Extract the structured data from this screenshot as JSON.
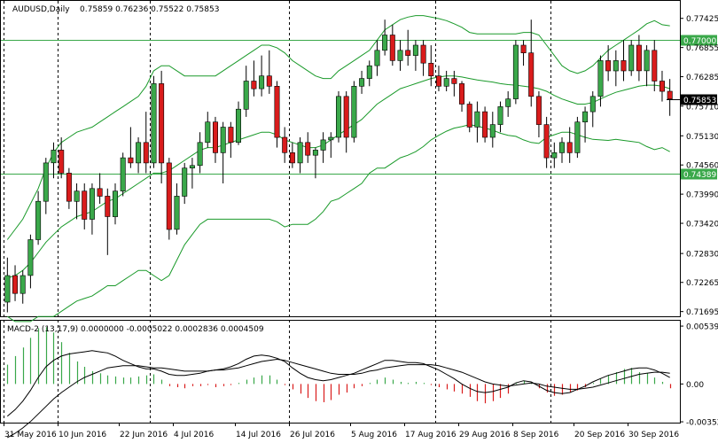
{
  "chart_data": {
    "type": "candlestick",
    "title": "AUDUSD,Daily",
    "ohlc_text": "0.75859 0.76236 0.75522 0.75853",
    "price_axis": {
      "range": [
        0.7162,
        0.7768
      ],
      "ticks": [
        "0.77425",
        "0.76855",
        "0.76285",
        "0.75710",
        "0.75130",
        "0.74560",
        "0.73990",
        "0.73420",
        "0.72830",
        "0.72265",
        "0.71695"
      ]
    },
    "horizontal_lines": [
      {
        "value": 0.77,
        "label": "0.77000",
        "color": "#3aa84a"
      },
      {
        "value": 0.74389,
        "label": "0.74389",
        "color": "#3aa84a"
      }
    ],
    "current_price": {
      "value": 0.75853,
      "label": "0.75853"
    },
    "x_labels": [
      "31 May 2016",
      "10 Jun 2016",
      "22 Jun 2016",
      "4 Jul 2016",
      "14 Jul 2016",
      "26 Jul 2016",
      "5 Aug 2016",
      "17 Aug 2016",
      "29 Aug 2016",
      "8 Sep 2016",
      "20 Sep 2016",
      "30 Sep 2016"
    ],
    "candles": [
      [
        0.7188,
        0.7275,
        0.7168,
        0.724
      ],
      [
        0.724,
        0.726,
        0.719,
        0.7205
      ],
      [
        0.7205,
        0.725,
        0.7185,
        0.724
      ],
      [
        0.724,
        0.732,
        0.7215,
        0.731
      ],
      [
        0.731,
        0.7405,
        0.73,
        0.7385
      ],
      [
        0.7385,
        0.747,
        0.736,
        0.746
      ],
      [
        0.746,
        0.75,
        0.743,
        0.7485
      ],
      [
        0.7485,
        0.751,
        0.743,
        0.744
      ],
      [
        0.744,
        0.745,
        0.737,
        0.7385
      ],
      [
        0.7385,
        0.742,
        0.735,
        0.7405
      ],
      [
        0.7405,
        0.742,
        0.733,
        0.735
      ],
      [
        0.735,
        0.742,
        0.732,
        0.741
      ],
      [
        0.741,
        0.744,
        0.738,
        0.7395
      ],
      [
        0.7395,
        0.741,
        0.728,
        0.7355
      ],
      [
        0.7355,
        0.742,
        0.734,
        0.7405
      ],
      [
        0.7405,
        0.748,
        0.7395,
        0.747
      ],
      [
        0.747,
        0.753,
        0.745,
        0.746
      ],
      [
        0.746,
        0.751,
        0.744,
        0.75
      ],
      [
        0.75,
        0.756,
        0.744,
        0.746
      ],
      [
        0.746,
        0.763,
        0.745,
        0.7615
      ],
      [
        0.7615,
        0.764,
        0.742,
        0.746
      ],
      [
        0.746,
        0.747,
        0.731,
        0.733
      ],
      [
        0.733,
        0.742,
        0.732,
        0.7395
      ],
      [
        0.7395,
        0.746,
        0.738,
        0.745
      ],
      [
        0.745,
        0.747,
        0.741,
        0.7455
      ],
      [
        0.7455,
        0.752,
        0.744,
        0.75
      ],
      [
        0.75,
        0.756,
        0.749,
        0.754
      ],
      [
        0.754,
        0.755,
        0.746,
        0.748
      ],
      [
        0.748,
        0.754,
        0.742,
        0.753
      ],
      [
        0.753,
        0.754,
        0.747,
        0.75
      ],
      [
        0.75,
        0.758,
        0.7495,
        0.7565
      ],
      [
        0.7565,
        0.765,
        0.755,
        0.762
      ],
      [
        0.762,
        0.766,
        0.759,
        0.7605
      ],
      [
        0.7605,
        0.767,
        0.759,
        0.763
      ],
      [
        0.763,
        0.768,
        0.7595,
        0.761
      ],
      [
        0.761,
        0.762,
        0.749,
        0.751
      ],
      [
        0.751,
        0.753,
        0.746,
        0.748
      ],
      [
        0.748,
        0.75,
        0.745,
        0.746
      ],
      [
        0.746,
        0.751,
        0.744,
        0.75
      ],
      [
        0.75,
        0.752,
        0.746,
        0.7475
      ],
      [
        0.7475,
        0.749,
        0.743,
        0.7485
      ],
      [
        0.7485,
        0.752,
        0.746,
        0.7505
      ],
      [
        0.7505,
        0.752,
        0.747,
        0.751
      ],
      [
        0.751,
        0.76,
        0.75,
        0.759
      ],
      [
        0.759,
        0.76,
        0.748,
        0.751
      ],
      [
        0.751,
        0.762,
        0.75,
        0.761
      ],
      [
        0.761,
        0.764,
        0.7595,
        0.7625
      ],
      [
        0.7625,
        0.766,
        0.761,
        0.765
      ],
      [
        0.765,
        0.77,
        0.763,
        0.768
      ],
      [
        0.768,
        0.774,
        0.767,
        0.771
      ],
      [
        0.771,
        0.773,
        0.765,
        0.766
      ],
      [
        0.766,
        0.77,
        0.764,
        0.768
      ],
      [
        0.768,
        0.772,
        0.765,
        0.767
      ],
      [
        0.767,
        0.77,
        0.764,
        0.769
      ],
      [
        0.769,
        0.77,
        0.763,
        0.7655
      ],
      [
        0.7655,
        0.769,
        0.761,
        0.763
      ],
      [
        0.763,
        0.765,
        0.76,
        0.761
      ],
      [
        0.761,
        0.764,
        0.76,
        0.7625
      ],
      [
        0.7625,
        0.764,
        0.759,
        0.7615
      ],
      [
        0.7615,
        0.762,
        0.756,
        0.7575
      ],
      [
        0.7575,
        0.758,
        0.752,
        0.753
      ],
      [
        0.753,
        0.758,
        0.75,
        0.756
      ],
      [
        0.756,
        0.757,
        0.75,
        0.751
      ],
      [
        0.751,
        0.756,
        0.749,
        0.7535
      ],
      [
        0.7535,
        0.758,
        0.752,
        0.757
      ],
      [
        0.757,
        0.76,
        0.755,
        0.7585
      ],
      [
        0.7585,
        0.77,
        0.7575,
        0.769
      ],
      [
        0.769,
        0.77,
        0.765,
        0.7675
      ],
      [
        0.7675,
        0.774,
        0.757,
        0.759
      ],
      [
        0.759,
        0.76,
        0.751,
        0.7535
      ],
      [
        0.7535,
        0.755,
        0.745,
        0.747
      ],
      [
        0.747,
        0.75,
        0.745,
        0.748
      ],
      [
        0.748,
        0.751,
        0.746,
        0.75
      ],
      [
        0.75,
        0.753,
        0.746,
        0.748
      ],
      [
        0.748,
        0.755,
        0.747,
        0.754
      ],
      [
        0.754,
        0.757,
        0.75,
        0.756
      ],
      [
        0.756,
        0.76,
        0.753,
        0.759
      ],
      [
        0.759,
        0.767,
        0.757,
        0.766
      ],
      [
        0.766,
        0.769,
        0.762,
        0.764
      ],
      [
        0.764,
        0.768,
        0.761,
        0.766
      ],
      [
        0.766,
        0.77,
        0.762,
        0.764
      ],
      [
        0.764,
        0.77,
        0.763,
        0.769
      ],
      [
        0.769,
        0.771,
        0.762,
        0.764
      ],
      [
        0.764,
        0.769,
        0.761,
        0.768
      ],
      [
        0.768,
        0.77,
        0.76,
        0.762
      ],
      [
        0.762,
        0.764,
        0.758,
        0.76
      ],
      [
        0.76,
        0.7624,
        0.7552,
        0.7585
      ]
    ],
    "bollinger": {
      "upper": [
        0.731,
        0.733,
        0.735,
        0.738,
        0.741,
        0.745,
        0.748,
        0.75,
        0.751,
        0.752,
        0.7525,
        0.753,
        0.754,
        0.755,
        0.756,
        0.757,
        0.758,
        0.759,
        0.761,
        0.764,
        0.765,
        0.765,
        0.764,
        0.763,
        0.763,
        0.763,
        0.763,
        0.763,
        0.764,
        0.765,
        0.766,
        0.767,
        0.768,
        0.769,
        0.769,
        0.7685,
        0.7675,
        0.766,
        0.765,
        0.764,
        0.763,
        0.7625,
        0.7625,
        0.764,
        0.765,
        0.766,
        0.767,
        0.768,
        0.77,
        0.772,
        0.773,
        0.774,
        0.7745,
        0.7748,
        0.7748,
        0.7745,
        0.7742,
        0.7738,
        0.7732,
        0.7725,
        0.7715,
        0.7712,
        0.7712,
        0.7712,
        0.7712,
        0.7712,
        0.7712,
        0.7715,
        0.7715,
        0.771,
        0.769,
        0.767,
        0.765,
        0.764,
        0.7635,
        0.764,
        0.765,
        0.7665,
        0.768,
        0.769,
        0.77,
        0.771,
        0.772,
        0.7732,
        0.7738,
        0.773,
        0.7728
      ],
      "middle": [
        0.7235,
        0.724,
        0.725,
        0.7265,
        0.7285,
        0.7305,
        0.732,
        0.7335,
        0.7345,
        0.7355,
        0.736,
        0.7365,
        0.7375,
        0.7385,
        0.739,
        0.74,
        0.741,
        0.742,
        0.743,
        0.744,
        0.744,
        0.7445,
        0.7455,
        0.7465,
        0.7475,
        0.7485,
        0.749,
        0.749,
        0.7495,
        0.75,
        0.7505,
        0.751,
        0.7515,
        0.752,
        0.752,
        0.7515,
        0.7505,
        0.75,
        0.7495,
        0.749,
        0.749,
        0.7495,
        0.7505,
        0.7515,
        0.7525,
        0.7535,
        0.7545,
        0.756,
        0.7575,
        0.7585,
        0.7595,
        0.7605,
        0.761,
        0.7615,
        0.762,
        0.7625,
        0.7628,
        0.763,
        0.763,
        0.7628,
        0.7625,
        0.7622,
        0.762,
        0.7618,
        0.7615,
        0.7613,
        0.7612,
        0.761,
        0.7608,
        0.7605,
        0.76,
        0.7592,
        0.7585,
        0.758,
        0.7575,
        0.7575,
        0.7578,
        0.7585,
        0.7592,
        0.7598,
        0.7602,
        0.7606,
        0.761,
        0.7612,
        0.7612,
        0.761,
        0.7605
      ],
      "lower": [
        0.716,
        0.715,
        0.715,
        0.715,
        0.716,
        0.716,
        0.716,
        0.717,
        0.718,
        0.719,
        0.7195,
        0.72,
        0.721,
        0.722,
        0.722,
        0.723,
        0.724,
        0.725,
        0.725,
        0.724,
        0.723,
        0.724,
        0.727,
        0.73,
        0.732,
        0.734,
        0.735,
        0.735,
        0.735,
        0.735,
        0.735,
        0.735,
        0.735,
        0.735,
        0.735,
        0.7345,
        0.7335,
        0.734,
        0.734,
        0.734,
        0.735,
        0.7365,
        0.7385,
        0.739,
        0.74,
        0.741,
        0.742,
        0.744,
        0.745,
        0.745,
        0.746,
        0.747,
        0.7475,
        0.7482,
        0.7492,
        0.7505,
        0.7514,
        0.7522,
        0.7528,
        0.7531,
        0.7535,
        0.7532,
        0.7528,
        0.7524,
        0.7518,
        0.7514,
        0.7512,
        0.7505,
        0.75,
        0.7498,
        0.751,
        0.7515,
        0.752,
        0.752,
        0.7515,
        0.751,
        0.7506,
        0.7505,
        0.7504,
        0.7506,
        0.7504,
        0.7502,
        0.75,
        0.7492,
        0.7486,
        0.749,
        0.7482
      ]
    },
    "macd": {
      "label": "MACD-2 (13,17,9) 0.0000000 -0.0005022 0.0002836 0.0004509",
      "axis_ticks": [
        "0.005395",
        "0.00",
        "-0.003525"
      ],
      "range": [
        -0.00352,
        0.0054
      ],
      "histogram": [
        0.0018,
        0.0026,
        0.0034,
        0.0043,
        0.0052,
        0.0053,
        0.0048,
        0.0039,
        0.0029,
        0.0021,
        0.0016,
        0.0012,
        0.001,
        0.0008,
        0.0007,
        0.0006,
        0.0006,
        0.0007,
        0.0008,
        0.0009,
        0.0004,
        -0.0002,
        -0.0003,
        -0.0004,
        -0.0002,
        -0.0002,
        -0.0001,
        -0.0003,
        -0.0002,
        -0.0001,
        0.0001,
        0.0004,
        0.0006,
        0.0008,
        0.0008,
        0.0004,
        -0.0001,
        -0.0005,
        -0.0009,
        -0.0013,
        -0.0016,
        -0.0017,
        -0.0015,
        -0.001,
        -0.0008,
        -0.0004,
        -0.0002,
        0.0001,
        0.0004,
        0.0006,
        0.0004,
        0.0002,
        0.0001,
        0.0002,
        0.0001,
        -0.0001,
        -0.0003,
        -0.0005,
        -0.0007,
        -0.0009,
        -0.0012,
        -0.0016,
        -0.0018,
        -0.0016,
        -0.0013,
        -0.0009,
        0.0001,
        0.0003,
        0.0001,
        -0.0004,
        -0.0008,
        -0.0011,
        -0.001,
        -0.0008,
        -0.0006,
        -0.0003,
        0.0001,
        0.0005,
        0.0008,
        0.0011,
        0.0014,
        0.0015,
        0.0011,
        0.001,
        0.0006,
        0.0002,
        -0.0004
      ],
      "macd_line": [
        -0.003,
        -0.0024,
        -0.0016,
        -0.0006,
        0.0006,
        0.0016,
        0.0022,
        0.0026,
        0.0028,
        0.0029,
        0.003,
        0.0031,
        0.003,
        0.0029,
        0.0026,
        0.0022,
        0.0019,
        0.0016,
        0.0014,
        0.0014,
        0.0012,
        0.0009,
        0.0008,
        0.0008,
        0.0009,
        0.001,
        0.0012,
        0.0013,
        0.0014,
        0.0016,
        0.0019,
        0.0023,
        0.0026,
        0.0027,
        0.0026,
        0.0024,
        0.0021,
        0.0015,
        0.001,
        0.0006,
        0.0004,
        0.0003,
        0.0004,
        0.0006,
        0.0008,
        0.001,
        0.0013,
        0.0016,
        0.0019,
        0.0022,
        0.0022,
        0.0021,
        0.002,
        0.002,
        0.0019,
        0.0016,
        0.0013,
        0.0009,
        0.0005,
        0.0,
        -0.0004,
        -0.0007,
        -0.0008,
        -0.0007,
        -0.0005,
        -0.0003,
        0.0001,
        0.0003,
        0.0002,
        -0.0002,
        -0.0006,
        -0.0008,
        -0.0009,
        -0.0008,
        -0.0005,
        -0.0002,
        0.0002,
        0.0005,
        0.0008,
        0.001,
        0.0012,
        0.0014,
        0.0015,
        0.0015,
        0.0013,
        0.001,
        0.0006
      ],
      "signal_line": [
        -0.005,
        -0.0046,
        -0.0041,
        -0.0035,
        -0.0028,
        -0.0021,
        -0.0014,
        -0.0008,
        -0.0003,
        0.0002,
        0.0006,
        0.0009,
        0.0012,
        0.0015,
        0.0016,
        0.0017,
        0.0017,
        0.0017,
        0.0016,
        0.0015,
        0.0015,
        0.0014,
        0.0013,
        0.0012,
        0.0012,
        0.0012,
        0.0012,
        0.0013,
        0.0013,
        0.0014,
        0.0015,
        0.0017,
        0.0019,
        0.0021,
        0.0022,
        0.0023,
        0.0022,
        0.002,
        0.0018,
        0.0016,
        0.0014,
        0.0012,
        0.001,
        0.0009,
        0.0009,
        0.0009,
        0.001,
        0.0012,
        0.0013,
        0.0015,
        0.0016,
        0.0017,
        0.0018,
        0.0018,
        0.0018,
        0.0018,
        0.0017,
        0.0015,
        0.0013,
        0.0011,
        0.0008,
        0.0005,
        0.0002,
        0.0,
        -0.0001,
        -0.0002,
        -0.0001,
        0.0,
        0.0001,
        0.0,
        -0.0002,
        -0.0003,
        -0.0004,
        -0.0005,
        -0.0005,
        -0.0004,
        -0.0003,
        -0.0001,
        0.0001,
        0.0003,
        0.0005,
        0.0007,
        0.0009,
        0.001,
        0.0011,
        0.0011,
        0.001
      ]
    },
    "colors": {
      "bull": "#3aa84a",
      "bear": "#d91c1c",
      "band": "#1a9a2a",
      "hline": "#3aa84a",
      "macd_line": "#000000",
      "signal_line": "#000000",
      "grid_dashed": "#000000"
    }
  }
}
